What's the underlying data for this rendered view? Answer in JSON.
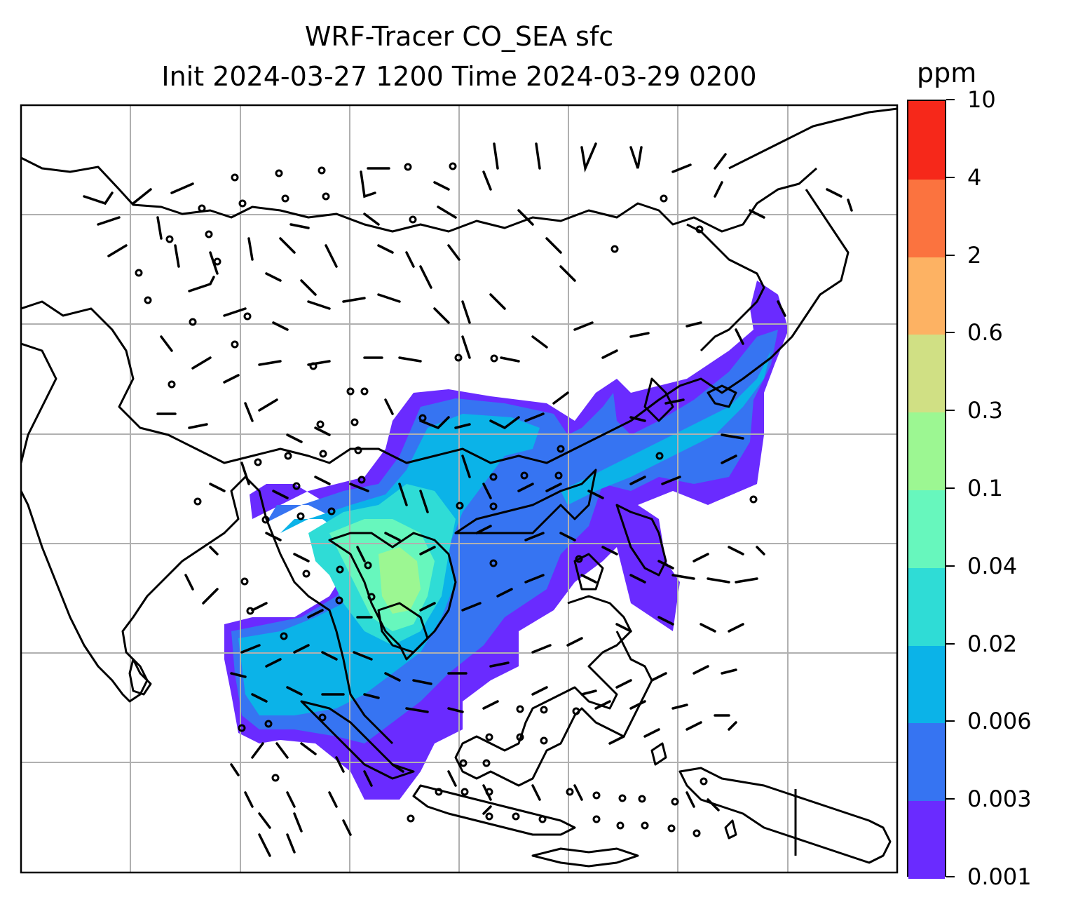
{
  "title": {
    "line1": "WRF-Tracer CO_SEA sfc",
    "line2": "Init 2024-03-27 1200 Time 2024-03-29 0200"
  },
  "colorbar": {
    "unit": "ppm",
    "levels": [
      "0.001",
      "0.003",
      "0.006",
      "0.02",
      "0.04",
      "0.1",
      "0.3",
      "0.6",
      "2",
      "4",
      "10"
    ],
    "colors": [
      "#6a2bff",
      "#3674f2",
      "#0bb3e8",
      "#2fdcd6",
      "#67f7bd",
      "#9cf792",
      "#d0e084",
      "#fdb263",
      "#fb733f",
      "#f6281a"
    ]
  },
  "map": {
    "gridlines": "on",
    "coastlines": "on",
    "wind_barbs": "on",
    "calm_circles": "on"
  }
}
